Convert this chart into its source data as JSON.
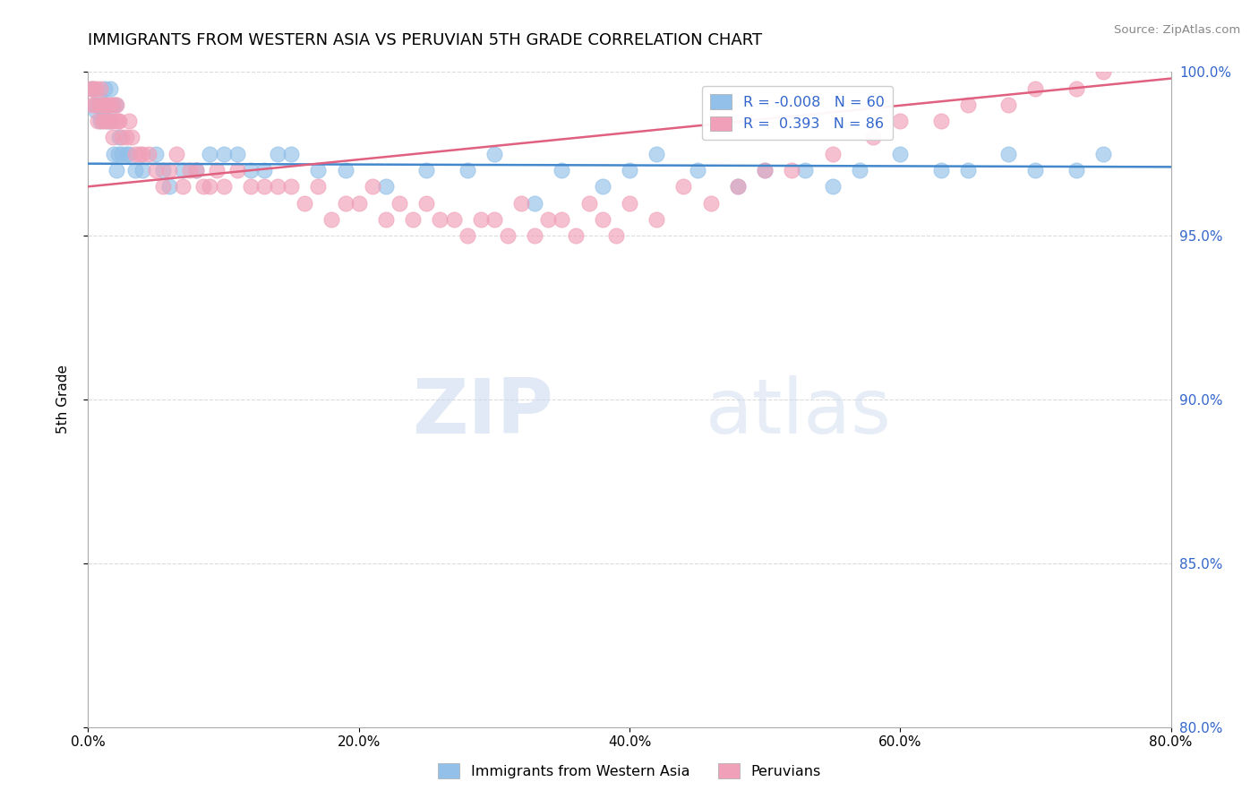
{
  "title": "IMMIGRANTS FROM WESTERN ASIA VS PERUVIAN 5TH GRADE CORRELATION CHART",
  "source_text": "Source: ZipAtlas.com",
  "ylabel": "5th Grade",
  "xlim": [
    0.0,
    80.0
  ],
  "ylim": [
    80.0,
    100.0
  ],
  "xticks": [
    0.0,
    20.0,
    40.0,
    60.0,
    80.0
  ],
  "yticks": [
    80.0,
    85.0,
    90.0,
    95.0,
    100.0
  ],
  "blue_R": -0.008,
  "blue_N": 60,
  "pink_R": 0.393,
  "pink_N": 86,
  "blue_color": "#92c0e8",
  "pink_color": "#f0a0b8",
  "blue_line_color": "#4488cc",
  "pink_line_color": "#e06080",
  "legend_blue_label": "Immigrants from Western Asia",
  "legend_pink_label": "Peruvians",
  "watermark_zip": "ZIP",
  "watermark_atlas": "atlas",
  "blue_line_y0": 97.2,
  "blue_line_y1": 97.1,
  "pink_line_y0": 96.5,
  "pink_line_y1": 99.8,
  "blue_x": [
    0.3,
    0.5,
    0.6,
    0.8,
    0.9,
    1.0,
    1.1,
    1.2,
    1.3,
    1.4,
    1.5,
    1.6,
    1.7,
    1.8,
    1.9,
    2.0,
    2.1,
    2.2,
    2.3,
    2.5,
    2.8,
    3.0,
    3.5,
    4.0,
    5.0,
    5.5,
    6.0,
    7.0,
    8.0,
    9.0,
    10.0,
    11.0,
    12.0,
    13.0,
    14.0,
    15.0,
    17.0,
    19.0,
    22.0,
    25.0,
    28.0,
    30.0,
    33.0,
    35.0,
    38.0,
    40.0,
    42.0,
    45.0,
    48.0,
    50.0,
    53.0,
    55.0,
    57.0,
    60.0,
    63.0,
    65.0,
    68.0,
    70.0,
    73.0,
    75.0
  ],
  "blue_y": [
    99.5,
    99.0,
    98.8,
    99.2,
    98.5,
    99.0,
    98.8,
    99.5,
    99.0,
    98.5,
    99.0,
    99.5,
    98.5,
    99.0,
    97.5,
    99.0,
    97.0,
    97.5,
    98.0,
    97.5,
    97.5,
    97.5,
    97.0,
    97.0,
    97.5,
    97.0,
    96.5,
    97.0,
    97.0,
    97.5,
    97.5,
    97.5,
    97.0,
    97.0,
    97.5,
    97.5,
    97.0,
    97.0,
    96.5,
    97.0,
    97.0,
    97.5,
    96.0,
    97.0,
    96.5,
    97.0,
    97.5,
    97.0,
    96.5,
    97.0,
    97.0,
    96.5,
    97.0,
    97.5,
    97.0,
    97.0,
    97.5,
    97.0,
    97.0,
    97.5
  ],
  "pink_x": [
    0.2,
    0.3,
    0.4,
    0.5,
    0.6,
    0.7,
    0.8,
    0.9,
    1.0,
    1.1,
    1.2,
    1.3,
    1.4,
    1.5,
    1.6,
    1.7,
    1.8,
    1.9,
    2.0,
    2.1,
    2.2,
    2.3,
    2.5,
    2.8,
    3.0,
    3.2,
    3.5,
    3.8,
    4.0,
    4.5,
    5.0,
    5.5,
    6.0,
    6.5,
    7.0,
    7.5,
    8.0,
    8.5,
    9.0,
    9.5,
    10.0,
    11.0,
    12.0,
    13.0,
    14.0,
    15.0,
    16.0,
    17.0,
    18.0,
    19.0,
    20.0,
    21.0,
    22.0,
    23.0,
    24.0,
    25.0,
    26.0,
    27.0,
    28.0,
    29.0,
    30.0,
    31.0,
    32.0,
    33.0,
    34.0,
    35.0,
    36.0,
    37.0,
    38.0,
    39.0,
    40.0,
    42.0,
    44.0,
    46.0,
    48.0,
    50.0,
    52.0,
    55.0,
    58.0,
    60.0,
    63.0,
    65.0,
    68.0,
    70.0,
    73.0,
    75.0
  ],
  "pink_y": [
    99.5,
    99.0,
    99.5,
    99.0,
    99.5,
    98.5,
    99.0,
    99.5,
    98.5,
    99.0,
    98.5,
    99.0,
    99.0,
    98.5,
    99.0,
    98.5,
    98.0,
    99.0,
    98.5,
    99.0,
    98.5,
    98.5,
    98.0,
    98.0,
    98.5,
    98.0,
    97.5,
    97.5,
    97.5,
    97.5,
    97.0,
    96.5,
    97.0,
    97.5,
    96.5,
    97.0,
    97.0,
    96.5,
    96.5,
    97.0,
    96.5,
    97.0,
    96.5,
    96.5,
    96.5,
    96.5,
    96.0,
    96.5,
    95.5,
    96.0,
    96.0,
    96.5,
    95.5,
    96.0,
    95.5,
    96.0,
    95.5,
    95.5,
    95.0,
    95.5,
    95.5,
    95.0,
    96.0,
    95.0,
    95.5,
    95.5,
    95.0,
    96.0,
    95.5,
    95.0,
    96.0,
    95.5,
    96.5,
    96.0,
    96.5,
    97.0,
    97.0,
    97.5,
    98.0,
    98.5,
    98.5,
    99.0,
    99.0,
    99.5,
    99.5,
    100.0
  ]
}
